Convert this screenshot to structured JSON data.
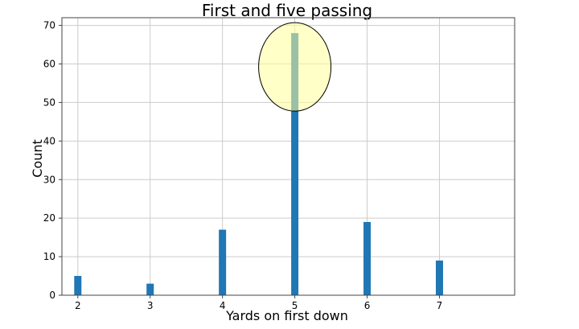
{
  "chart_data": {
    "type": "bar",
    "title": "First and five passing",
    "xlabel": "Yards on first down",
    "ylabel": "Count",
    "x": [
      2,
      3,
      4,
      5,
      6,
      7
    ],
    "values": [
      5,
      3,
      17,
      68,
      19,
      9
    ],
    "xticks": [
      2,
      3,
      4,
      5,
      6,
      7
    ],
    "yticks": [
      0,
      10,
      20,
      30,
      40,
      50,
      60,
      70
    ],
    "xlim": [
      1.78,
      8.04
    ],
    "ylim": [
      0,
      72
    ],
    "grid": true,
    "legend": "none",
    "bar_color": "#1f77b4",
    "highlight": {
      "x": 5,
      "shape": "ellipse",
      "fill_color": "#ffff99",
      "stroke_color": "#000000"
    }
  }
}
